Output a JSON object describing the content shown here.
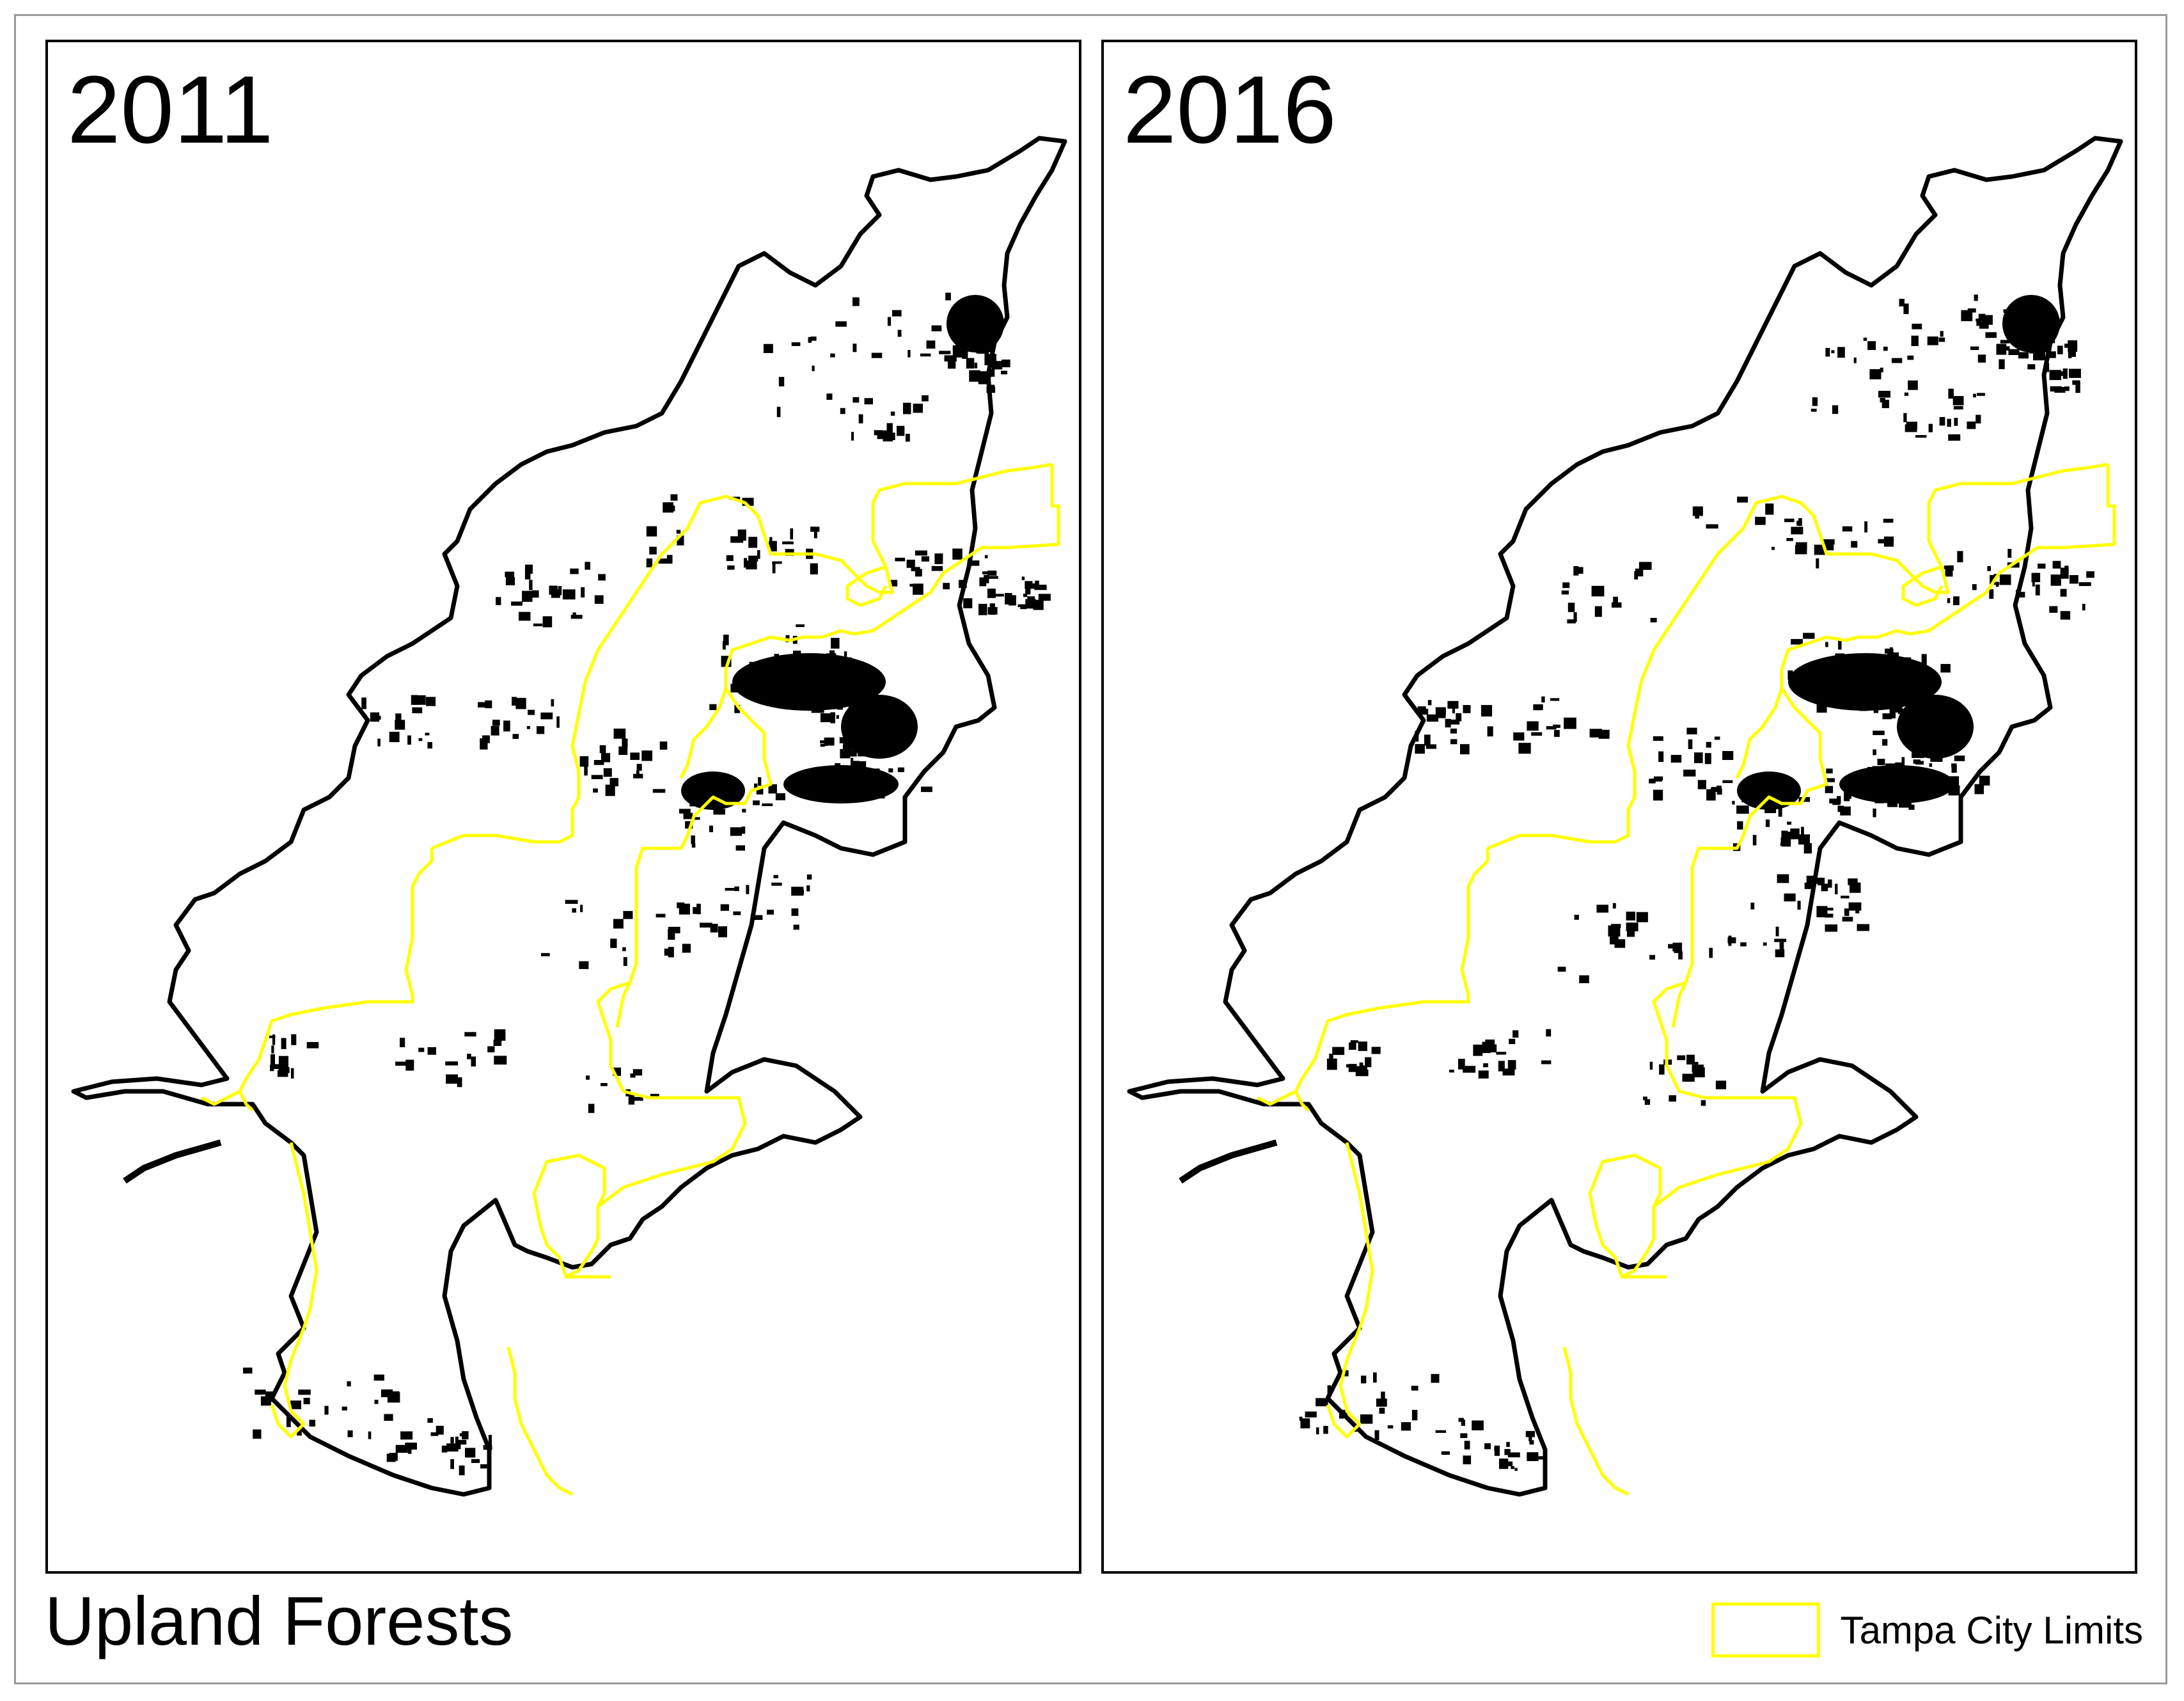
{
  "panels": [
    {
      "year": "2011"
    },
    {
      "year": "2016"
    }
  ],
  "footer": {
    "title": "Upland Forests"
  },
  "legend": {
    "label": "Tampa City Limits",
    "color": "#ffff00"
  },
  "colors": {
    "boundary": "#000000",
    "city_limits": "#ffff00",
    "forest": "#000000",
    "background": "#ffffff"
  }
}
